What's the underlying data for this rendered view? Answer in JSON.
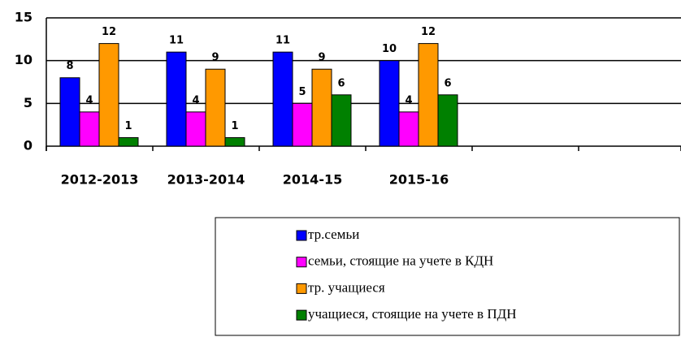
{
  "chart_data": {
    "type": "bar",
    "categories": [
      "2012-2013",
      "2013-2014",
      "2014-15",
      "2015-16",
      null,
      null
    ],
    "series": [
      {
        "name": "тр.семьи",
        "color": "#0000ff",
        "values": [
          8,
          11,
          11,
          10,
          null,
          null
        ]
      },
      {
        "name": "семьи, стоящие на учете в КДН",
        "color": "#ff00ff",
        "values": [
          4,
          4,
          5,
          4,
          null,
          null
        ]
      },
      {
        "name": "тр. учащиеся",
        "color": "#ff9900",
        "values": [
          12,
          9,
          9,
          12,
          null,
          null
        ]
      },
      {
        "name": "учащиеся, стоящие на учете в ПДН",
        "color": "#008000",
        "values": [
          1,
          1,
          6,
          6,
          null,
          null
        ]
      }
    ],
    "ylim": [
      0,
      15
    ],
    "yticks": [
      0,
      5,
      10,
      15
    ],
    "grid": true,
    "legend": "bottom"
  }
}
